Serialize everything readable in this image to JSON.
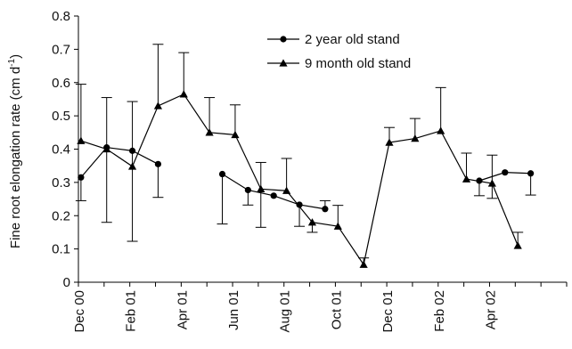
{
  "chart_data": {
    "type": "line",
    "ylabel": "Fine root elongation rate (cm d",
    "ylabel_sup": "-1",
    "ylabel_close": ")",
    "ylim": [
      0,
      0.8
    ],
    "yticks": [
      "0",
      "0.1",
      "0.2",
      "0.3",
      "0.4",
      "0.5",
      "0.6",
      "0.7",
      "0.8"
    ],
    "x_range": [
      0,
      19
    ],
    "xtick_labels": [
      {
        "label": "Dec 00",
        "x": 0
      },
      {
        "label": "Feb 01",
        "x": 2
      },
      {
        "label": "Apr 01",
        "x": 4
      },
      {
        "label": "Jun 01",
        "x": 6
      },
      {
        "label": "Aug 01",
        "x": 8
      },
      {
        "label": "Oct 01",
        "x": 10
      },
      {
        "label": "Dec 01",
        "x": 12
      },
      {
        "label": "Feb 02",
        "x": 14
      },
      {
        "label": "Apr 02",
        "x": 16
      }
    ],
    "legend_position": "top-center",
    "grid": false,
    "series": [
      {
        "name": "2 year old stand",
        "marker": "circle",
        "color": "#000000",
        "segments": [
          [
            {
              "x": 0.1,
              "y": 0.315,
              "err_lo": 0.07,
              "err_hi": 0.0
            },
            {
              "x": 1.1,
              "y": 0.405,
              "err_lo": 0.0,
              "err_hi": 0.0
            },
            {
              "x": 2.1,
              "y": 0.395,
              "err_lo": 0.0,
              "err_hi": 0.0
            },
            {
              "x": 3.1,
              "y": 0.355,
              "err_lo": 0.1,
              "err_hi": 0.0
            }
          ],
          [
            {
              "x": 5.6,
              "y": 0.325,
              "err_lo": 0.15,
              "err_hi": 0.0
            },
            {
              "x": 6.6,
              "y": 0.277,
              "err_lo": 0.045,
              "err_hi": 0.0
            },
            {
              "x": 7.6,
              "y": 0.26,
              "err_lo": 0.0,
              "err_hi": 0.0
            },
            {
              "x": 8.6,
              "y": 0.233,
              "err_lo": 0.065,
              "err_hi": 0.0
            },
            {
              "x": 9.6,
              "y": 0.22,
              "err_lo": 0.0,
              "err_hi": 0.025
            }
          ],
          [
            {
              "x": 15.6,
              "y": 0.305,
              "err_lo": 0.045,
              "err_hi": 0.0
            },
            {
              "x": 16.6,
              "y": 0.33,
              "err_lo": 0.0,
              "err_hi": 0.0
            },
            {
              "x": 17.6,
              "y": 0.327,
              "err_lo": 0.065,
              "err_hi": 0.0
            }
          ]
        ]
      },
      {
        "name": "9 month old stand",
        "marker": "triangle",
        "color": "#000000",
        "segments": [
          [
            {
              "x": 0.1,
              "y": 0.425,
              "err_lo": 0.0,
              "err_hi": 0.17
            },
            {
              "x": 1.1,
              "y": 0.4,
              "err_lo": 0.22,
              "err_hi": 0.155
            },
            {
              "x": 2.1,
              "y": 0.348,
              "err_lo": 0.225,
              "err_hi": 0.195
            },
            {
              "x": 3.1,
              "y": 0.53,
              "err_lo": 0.0,
              "err_hi": 0.185
            },
            {
              "x": 4.1,
              "y": 0.565,
              "err_lo": 0.0,
              "err_hi": 0.125
            },
            {
              "x": 5.1,
              "y": 0.45,
              "err_lo": 0.0,
              "err_hi": 0.105
            },
            {
              "x": 6.1,
              "y": 0.443,
              "err_lo": 0.0,
              "err_hi": 0.09
            },
            {
              "x": 7.1,
              "y": 0.28,
              "err_lo": 0.115,
              "err_hi": 0.08
            },
            {
              "x": 8.1,
              "y": 0.275,
              "err_lo": 0.0,
              "err_hi": 0.097
            },
            {
              "x": 9.1,
              "y": 0.18,
              "err_lo": 0.03,
              "err_hi": 0.0
            },
            {
              "x": 10.1,
              "y": 0.168,
              "err_lo": 0.0,
              "err_hi": 0.063
            },
            {
              "x": 11.1,
              "y": 0.053,
              "err_lo": 0.0,
              "err_hi": 0.02
            },
            {
              "x": 12.1,
              "y": 0.42,
              "err_lo": 0.0,
              "err_hi": 0.045
            },
            {
              "x": 13.1,
              "y": 0.432,
              "err_lo": 0.0,
              "err_hi": 0.06
            },
            {
              "x": 14.1,
              "y": 0.455,
              "err_lo": 0.0,
              "err_hi": 0.13
            },
            {
              "x": 15.1,
              "y": 0.31,
              "err_lo": 0.0,
              "err_hi": 0.078
            },
            {
              "x": 16.1,
              "y": 0.297,
              "err_lo": 0.045,
              "err_hi": 0.085
            },
            {
              "x": 17.1,
              "y": 0.11,
              "err_lo": 0.0,
              "err_hi": 0.04
            }
          ]
        ]
      }
    ]
  }
}
